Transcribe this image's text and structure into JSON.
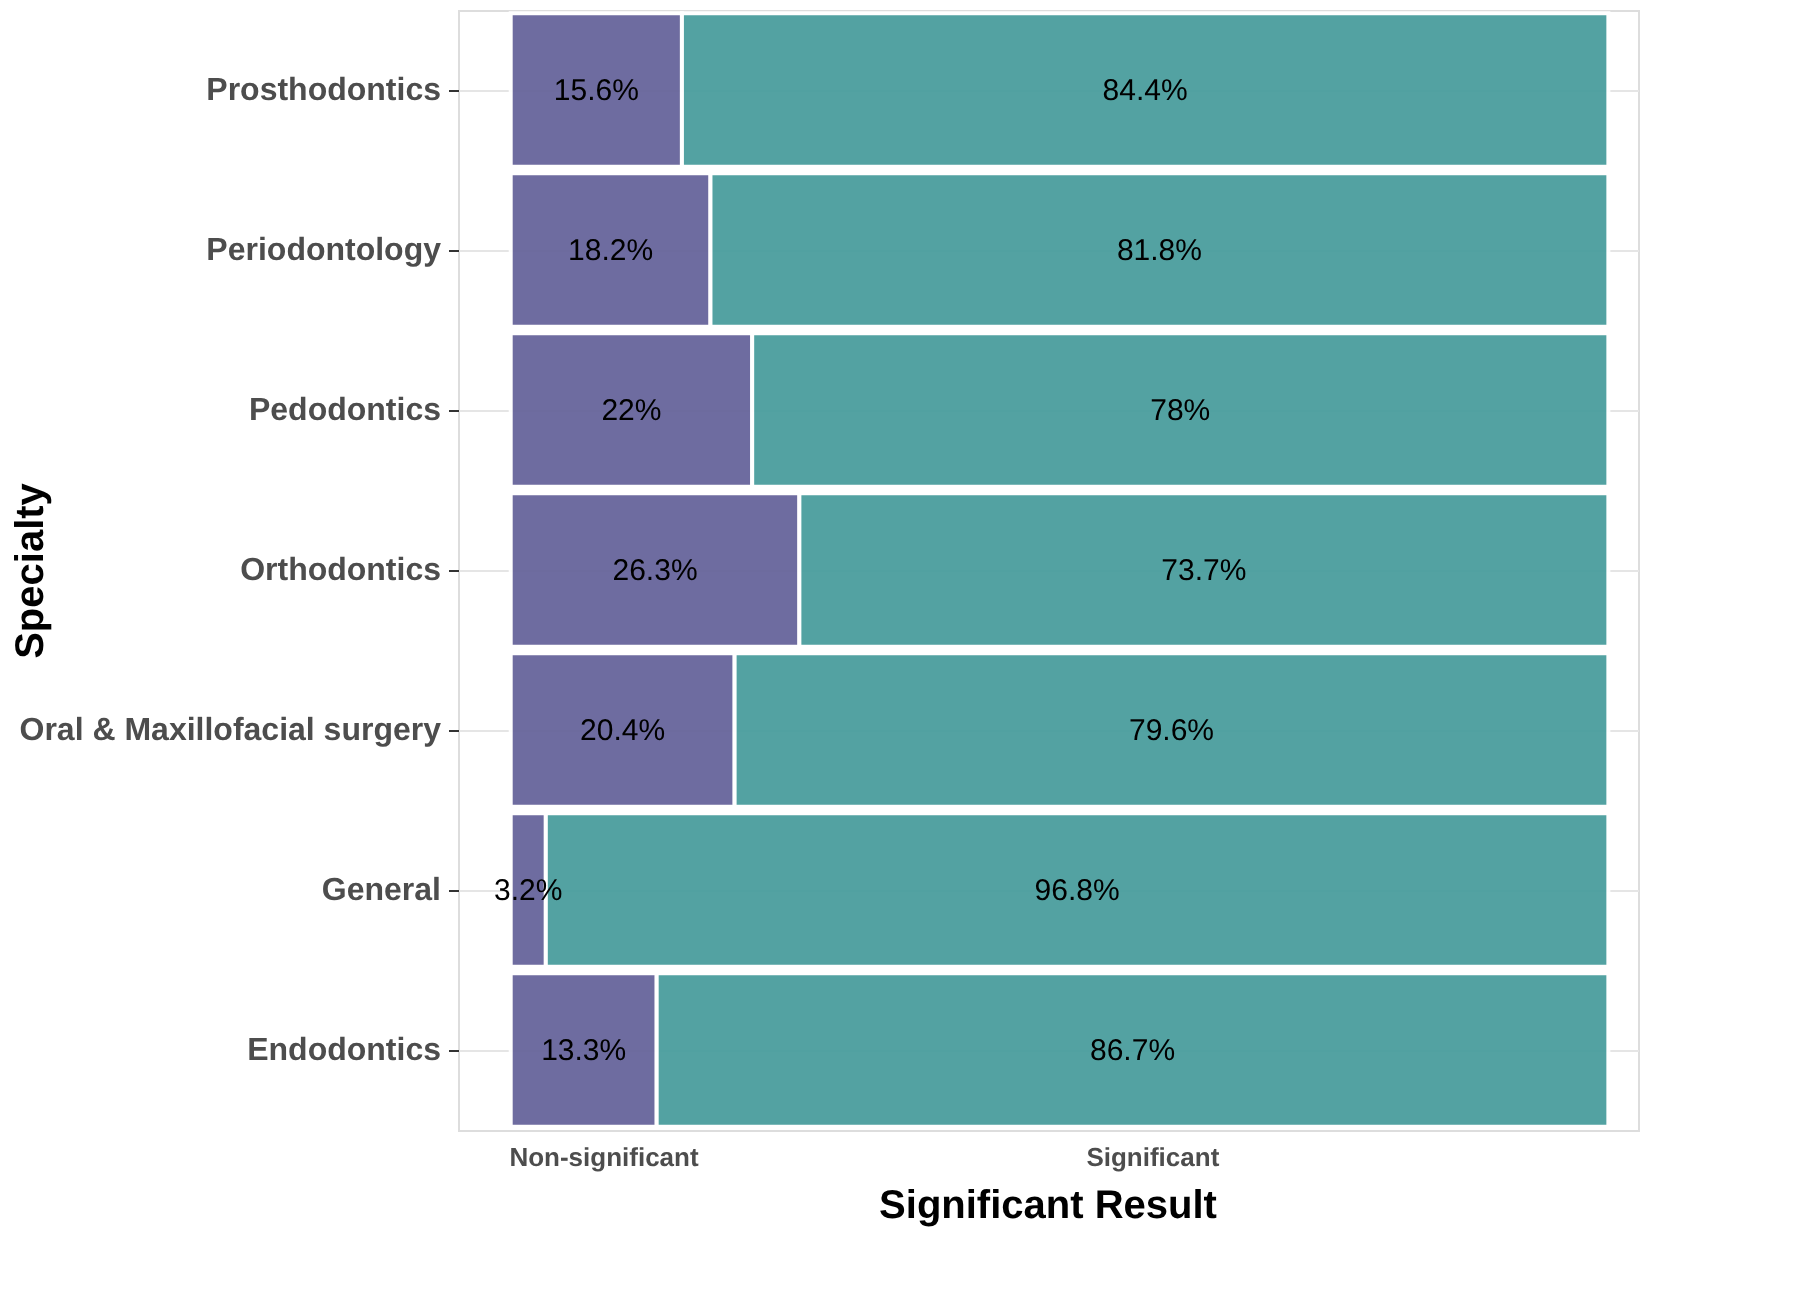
{
  "chart_data": {
    "type": "bar",
    "orientation": "horizontal",
    "stacked": true,
    "xlabel": "Significant Result",
    "ylabel": "Specialty",
    "categories": [
      "Prosthodontics",
      "Periodontology",
      "Pedodontics",
      "Orthodontics",
      "Oral & Maxillofacial surgery",
      "General",
      "Endodontics"
    ],
    "series": [
      {
        "name": "Non-significant",
        "color": "#67659b",
        "values": [
          15.6,
          18.2,
          22,
          26.3,
          20.4,
          3.2,
          13.3
        ],
        "value_labels": [
          "15.6%",
          "18.2%",
          "22%",
          "26.3%",
          "20.4%",
          "3.2%",
          "13.3%"
        ]
      },
      {
        "name": "Significant",
        "color": "#4a9e9e",
        "values": [
          84.4,
          81.8,
          78,
          73.7,
          79.6,
          96.8,
          86.7
        ],
        "value_labels": [
          "84.4%",
          "81.8%",
          "78%",
          "73.7%",
          "79.6%",
          "96.8%",
          "86.7%"
        ]
      }
    ],
    "tick_labels": "y",
    "grid": true
  }
}
